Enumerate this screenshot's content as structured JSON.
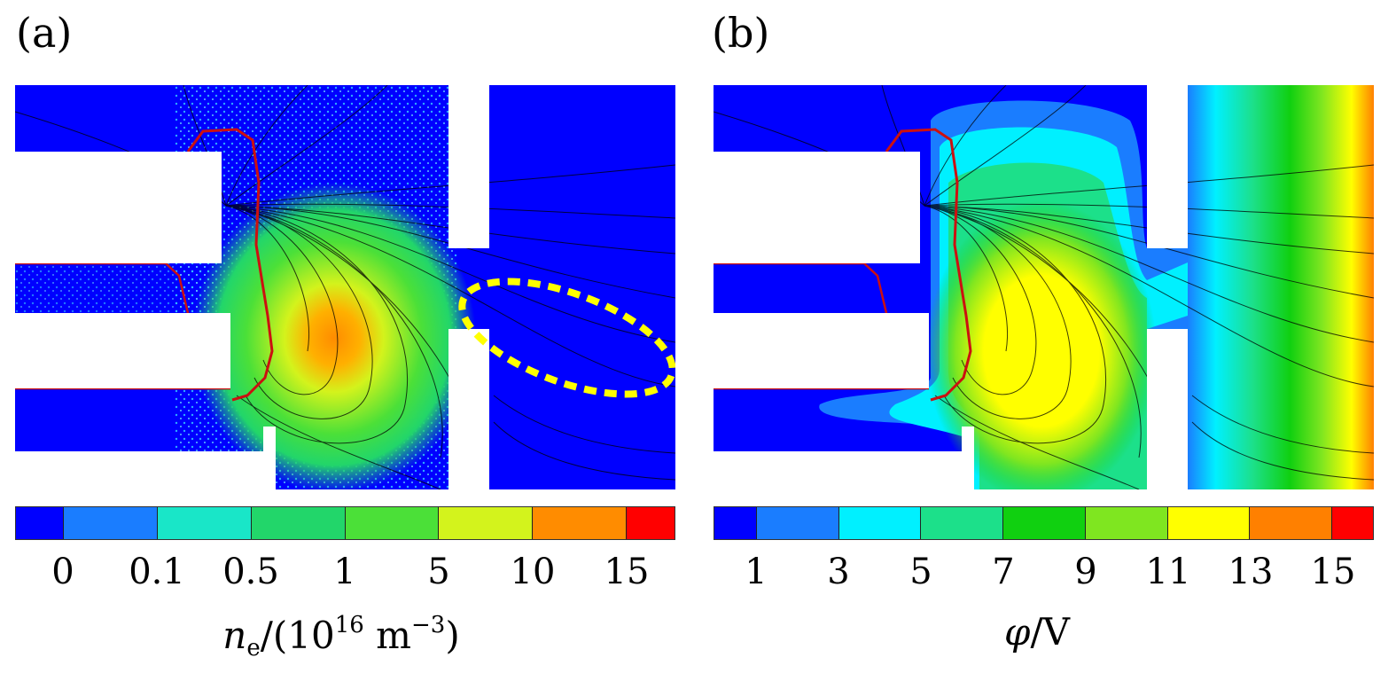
{
  "panels": [
    {
      "label": "(a)",
      "colorbar": {
        "colors": [
          "#0000ff",
          "#1a7dff",
          "#19e6c8",
          "#22d66a",
          "#4be038",
          "#d3f31c",
          "#ff8c00",
          "#ff0000"
        ],
        "ticks": [
          "0",
          "0.1",
          "0.5",
          "1",
          "5",
          "10",
          "15"
        ],
        "quantity_symbol": "n",
        "quantity_subscript": "e",
        "unit_open": "/(10",
        "unit_exp": "16",
        "unit_mid": " m",
        "unit_exp2": "−3",
        "unit_close": ")"
      }
    },
    {
      "label": "(b)",
      "colorbar": {
        "colors": [
          "#0000ff",
          "#1a7dff",
          "#00f0ff",
          "#1ce08a",
          "#10d010",
          "#7fe620",
          "#ffff00",
          "#ff8000",
          "#ff0000"
        ],
        "ticks": [
          "1",
          "3",
          "5",
          "7",
          "9",
          "11",
          "13",
          "15"
        ],
        "quantity_symbol": "φ",
        "unit": "/V"
      }
    }
  ],
  "colors": {
    "background": "#0000ff",
    "boundary_line": "#cc1010",
    "highlight_ellipse": "#ffff00",
    "streamlines": "#000000"
  }
}
